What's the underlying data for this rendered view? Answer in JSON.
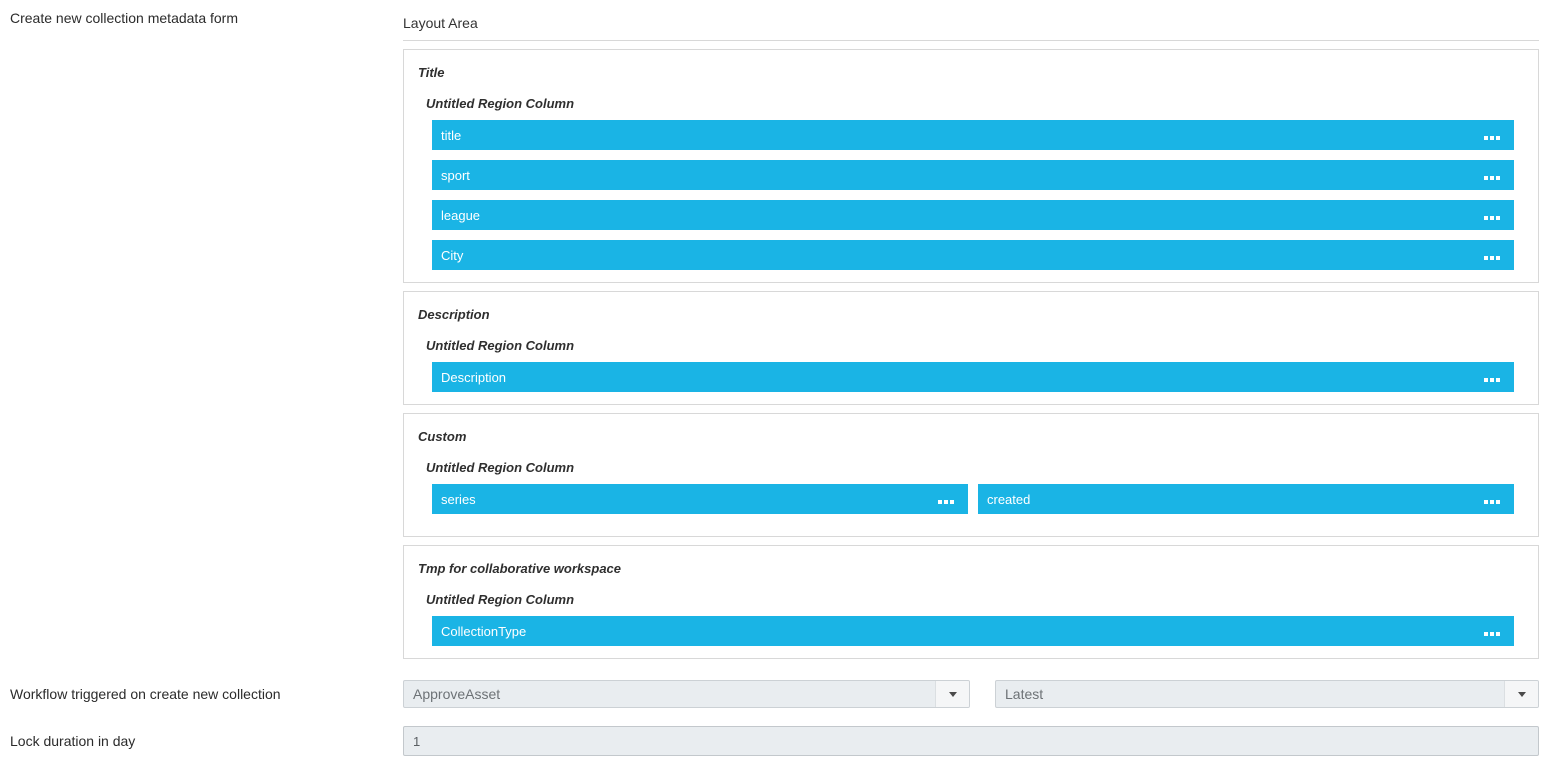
{
  "form": {
    "title_label": "Create new collection metadata form",
    "workflow_label": "Workflow triggered on create new collection",
    "lock_label": "Lock duration in day",
    "lock_value": "1"
  },
  "layout_area": {
    "heading": "Layout Area",
    "sections": [
      {
        "label": "Title",
        "region_label": "Untitled Region Column",
        "fields": [
          {
            "label": "title"
          },
          {
            "label": "sport"
          },
          {
            "label": "league"
          },
          {
            "label": "City"
          }
        ]
      },
      {
        "label": "Description",
        "region_label": "Untitled Region Column",
        "fields": [
          {
            "label": "Description"
          }
        ]
      },
      {
        "label": "Custom",
        "region_label": "Untitled Region Column",
        "fields": [
          {
            "label": "series"
          },
          {
            "label": "created"
          }
        ]
      },
      {
        "label": "Tmp for collaborative workspace",
        "region_label": "Untitled Region Column",
        "fields": [
          {
            "label": "CollectionType"
          }
        ]
      }
    ]
  },
  "workflow": {
    "workflow_dropdown_value": "ApproveAsset",
    "version_dropdown_value": "Latest"
  },
  "colors": {
    "field_bar_blue": "#1ab4e5",
    "field_bar_text": "#ffffff",
    "dropdown_bg": "#e9edf0",
    "section_border": "#d8d8d8"
  }
}
